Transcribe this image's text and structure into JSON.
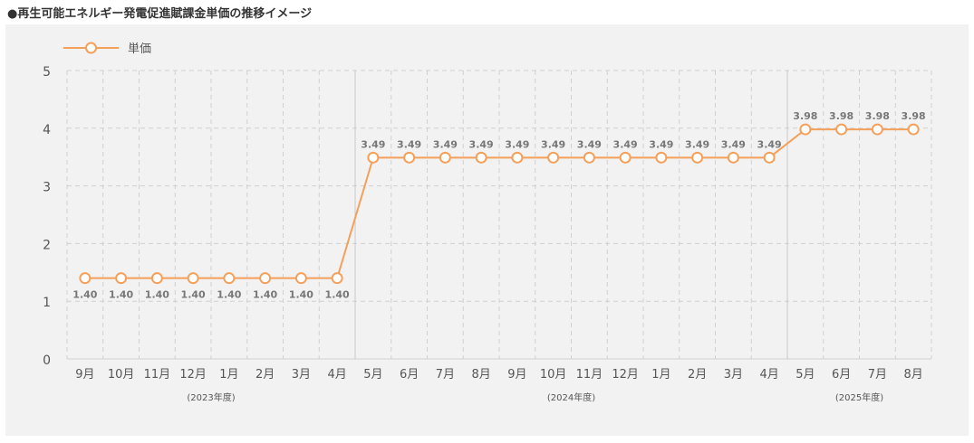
{
  "title": "●再生可能エネルギー発電促進賦課金単価の推移イメージ",
  "chart_data": {
    "type": "line",
    "title": "●再生可能エネルギー発電促進賦課金単価の推移イメージ",
    "xlabel": "",
    "ylabel": "",
    "categories": [
      "9月",
      "10月",
      "11月",
      "12月",
      "1月",
      "2月",
      "3月",
      "4月",
      "5月",
      "6月",
      "7月",
      "8月",
      "9月",
      "10月",
      "11月",
      "12月",
      "1月",
      "2月",
      "3月",
      "4月",
      "5月",
      "6月",
      "7月",
      "8月"
    ],
    "series": [
      {
        "name": "単価",
        "values": [
          1.4,
          1.4,
          1.4,
          1.4,
          1.4,
          1.4,
          1.4,
          1.4,
          3.49,
          3.49,
          3.49,
          3.49,
          3.49,
          3.49,
          3.49,
          3.49,
          3.49,
          3.49,
          3.49,
          3.49,
          3.98,
          3.98,
          3.98,
          3.98
        ],
        "labels": [
          "1.40",
          "1.40",
          "1.40",
          "1.40",
          "1.40",
          "1.40",
          "1.40",
          "1.40",
          "3.49",
          "3.49",
          "3.49",
          "3.49",
          "3.49",
          "3.49",
          "3.49",
          "3.49",
          "3.49",
          "3.49",
          "3.49",
          "3.49",
          "3.98",
          "3.98",
          "3.98",
          "3.98"
        ]
      }
    ],
    "ylim": [
      0,
      5
    ],
    "yticks": [
      "0",
      "1",
      "2",
      "3",
      "4",
      "5"
    ],
    "fiscal_years": [
      {
        "label": "(2023年度)",
        "start": 0,
        "end": 7
      },
      {
        "label": "(2024年度)",
        "start": 8,
        "end": 19
      },
      {
        "label": "(2025年度)",
        "start": 20,
        "end": 23
      }
    ],
    "legend": "top-left",
    "grid": true,
    "colors": {
      "line": "#f5a05a",
      "marker_fill": "#ffffff",
      "grid": "#d0d0d0",
      "divider": "#c8c8c8",
      "tick_text": "#555555",
      "data_text": "#777777",
      "panel": "#f2f2f2"
    }
  }
}
